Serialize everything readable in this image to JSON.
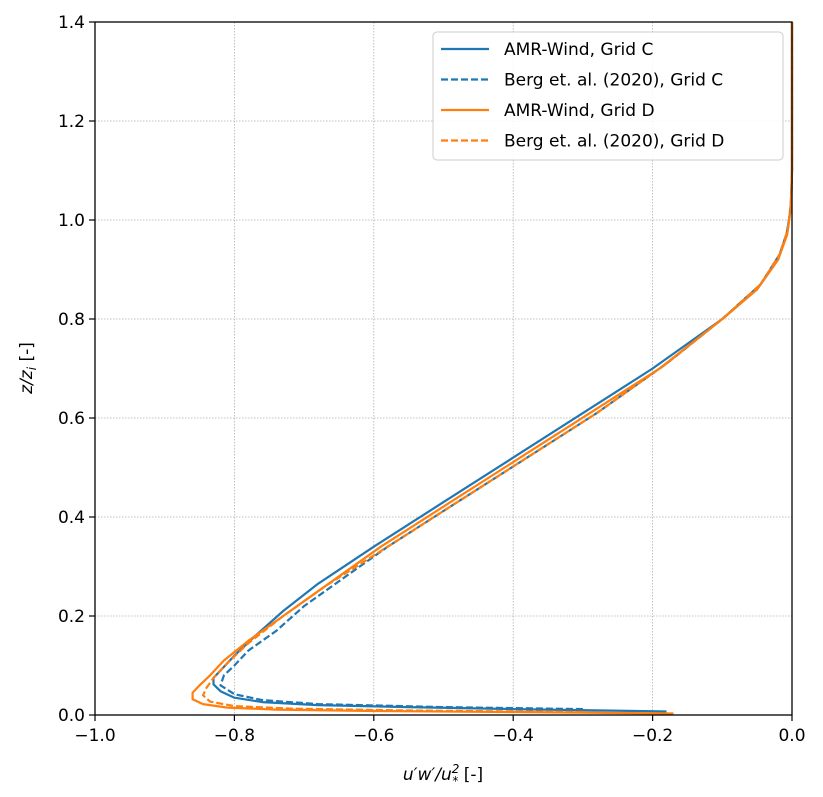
{
  "chart_data": {
    "type": "line",
    "xlabel": "u′w′/u²* [-]",
    "xlabel_parts": {
      "main": "u′w′/u",
      "sup": "2",
      "sub": "*",
      "unit": "[-]"
    },
    "ylabel": "z/z_i [-]",
    "ylabel_parts": {
      "main": "z/z",
      "sub": "i",
      "unit": "[-]"
    },
    "xlim": [
      -1.0,
      0.0
    ],
    "ylim": [
      0.0,
      1.4
    ],
    "xticks": [
      -1.0,
      -0.8,
      -0.6,
      -0.4,
      -0.2,
      0.0
    ],
    "xtick_labels": [
      "−1.0",
      "−0.8",
      "−0.6",
      "−0.4",
      "−0.2",
      "0.0"
    ],
    "yticks": [
      0.0,
      0.2,
      0.4,
      0.6,
      0.8,
      1.0,
      1.2,
      1.4
    ],
    "ytick_labels": [
      "0.0",
      "0.2",
      "0.4",
      "0.6",
      "0.8",
      "1.0",
      "1.2",
      "1.4"
    ],
    "grid": true,
    "legend_position": "top-right",
    "series": [
      {
        "name": "AMR-Wind, Grid C",
        "color": "#1f77b4",
        "dash": "solid",
        "points": [
          [
            -0.18,
            0.007
          ],
          [
            -0.4,
            0.012
          ],
          [
            -0.55,
            0.016
          ],
          [
            -0.68,
            0.02
          ],
          [
            -0.76,
            0.026
          ],
          [
            -0.8,
            0.035
          ],
          [
            -0.82,
            0.048
          ],
          [
            -0.83,
            0.062
          ],
          [
            -0.83,
            0.075
          ],
          [
            -0.82,
            0.09
          ],
          [
            -0.8,
            0.12
          ],
          [
            -0.77,
            0.16
          ],
          [
            -0.73,
            0.21
          ],
          [
            -0.68,
            0.265
          ],
          [
            -0.6,
            0.34
          ],
          [
            -0.5,
            0.43
          ],
          [
            -0.4,
            0.52
          ],
          [
            -0.3,
            0.61
          ],
          [
            -0.2,
            0.7
          ],
          [
            -0.1,
            0.8
          ],
          [
            -0.05,
            0.86
          ],
          [
            -0.02,
            0.92
          ],
          [
            -0.008,
            0.97
          ],
          [
            -0.002,
            1.02
          ],
          [
            0.0,
            1.1
          ],
          [
            0.0,
            1.4
          ]
        ]
      },
      {
        "name": "Berg et. al. (2020), Grid C",
        "color": "#1f77b4",
        "dash": "dashed",
        "points": [
          [
            -0.3,
            0.012
          ],
          [
            -0.5,
            0.016
          ],
          [
            -0.68,
            0.022
          ],
          [
            -0.76,
            0.03
          ],
          [
            -0.8,
            0.042
          ],
          [
            -0.82,
            0.06
          ],
          [
            -0.815,
            0.08
          ],
          [
            -0.8,
            0.1
          ],
          [
            -0.78,
            0.13
          ],
          [
            -0.74,
            0.17
          ],
          [
            -0.7,
            0.22
          ],
          [
            -0.65,
            0.27
          ],
          [
            -0.58,
            0.34
          ],
          [
            -0.48,
            0.43
          ],
          [
            -0.38,
            0.52
          ],
          [
            -0.28,
            0.61
          ],
          [
            -0.18,
            0.71
          ],
          [
            -0.1,
            0.8
          ],
          [
            -0.045,
            0.87
          ],
          [
            -0.018,
            0.93
          ],
          [
            -0.006,
            0.98
          ],
          [
            -0.001,
            1.04
          ],
          [
            0.0,
            1.1
          ],
          [
            0.0,
            1.4
          ]
        ]
      },
      {
        "name": "AMR-Wind, Grid D",
        "color": "#ff7f0e",
        "dash": "solid",
        "points": [
          [
            -0.17,
            0.003
          ],
          [
            -0.4,
            0.006
          ],
          [
            -0.6,
            0.008
          ],
          [
            -0.74,
            0.011
          ],
          [
            -0.81,
            0.015
          ],
          [
            -0.845,
            0.022
          ],
          [
            -0.86,
            0.032
          ],
          [
            -0.86,
            0.045
          ],
          [
            -0.85,
            0.06
          ],
          [
            -0.835,
            0.08
          ],
          [
            -0.815,
            0.11
          ],
          [
            -0.78,
            0.15
          ],
          [
            -0.73,
            0.2
          ],
          [
            -0.67,
            0.26
          ],
          [
            -0.59,
            0.34
          ],
          [
            -0.49,
            0.43
          ],
          [
            -0.39,
            0.52
          ],
          [
            -0.29,
            0.61
          ],
          [
            -0.19,
            0.7
          ],
          [
            -0.1,
            0.8
          ],
          [
            -0.05,
            0.86
          ],
          [
            -0.02,
            0.92
          ],
          [
            -0.007,
            0.97
          ],
          [
            -0.002,
            1.02
          ],
          [
            0.0,
            1.1
          ],
          [
            0.0,
            1.4
          ]
        ]
      },
      {
        "name": "Berg et. al. (2020), Grid D",
        "color": "#ff7f0e",
        "dash": "dashed",
        "points": [
          [
            -0.3,
            0.006
          ],
          [
            -0.55,
            0.009
          ],
          [
            -0.72,
            0.013
          ],
          [
            -0.8,
            0.018
          ],
          [
            -0.835,
            0.027
          ],
          [
            -0.845,
            0.04
          ],
          [
            -0.84,
            0.055
          ],
          [
            -0.83,
            0.075
          ],
          [
            -0.81,
            0.105
          ],
          [
            -0.78,
            0.145
          ],
          [
            -0.73,
            0.2
          ],
          [
            -0.67,
            0.26
          ],
          [
            -0.58,
            0.34
          ],
          [
            -0.48,
            0.43
          ],
          [
            -0.38,
            0.52
          ],
          [
            -0.28,
            0.61
          ],
          [
            -0.18,
            0.71
          ],
          [
            -0.1,
            0.8
          ],
          [
            -0.045,
            0.87
          ],
          [
            -0.018,
            0.93
          ],
          [
            -0.006,
            0.98
          ],
          [
            -0.001,
            1.04
          ],
          [
            0.0,
            1.1
          ],
          [
            0.0,
            1.4
          ]
        ]
      }
    ]
  }
}
